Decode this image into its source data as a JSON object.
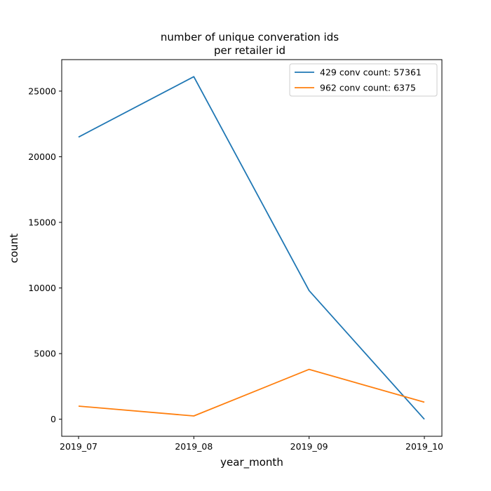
{
  "chart_data": {
    "type": "line",
    "title_lines": [
      "number of unique converation ids",
      "per retailer id"
    ],
    "xlabel": "year_month",
    "ylabel": "count",
    "categories": [
      "2019_07",
      "2019_08",
      "2019_09",
      "2019_10"
    ],
    "y_ticks": [
      0,
      5000,
      10000,
      15000,
      20000,
      25000
    ],
    "ylim": [
      -1300,
      27400
    ],
    "grid": false,
    "legend_position": "top-right",
    "series": [
      {
        "name": "429 conv count: 57361",
        "color": "#1f77b4",
        "values": [
          21500,
          26100,
          9800,
          0
        ]
      },
      {
        "name": "962 conv count: 6375",
        "color": "#ff7f0e",
        "values": [
          1000,
          250,
          3800,
          1300
        ]
      }
    ]
  }
}
